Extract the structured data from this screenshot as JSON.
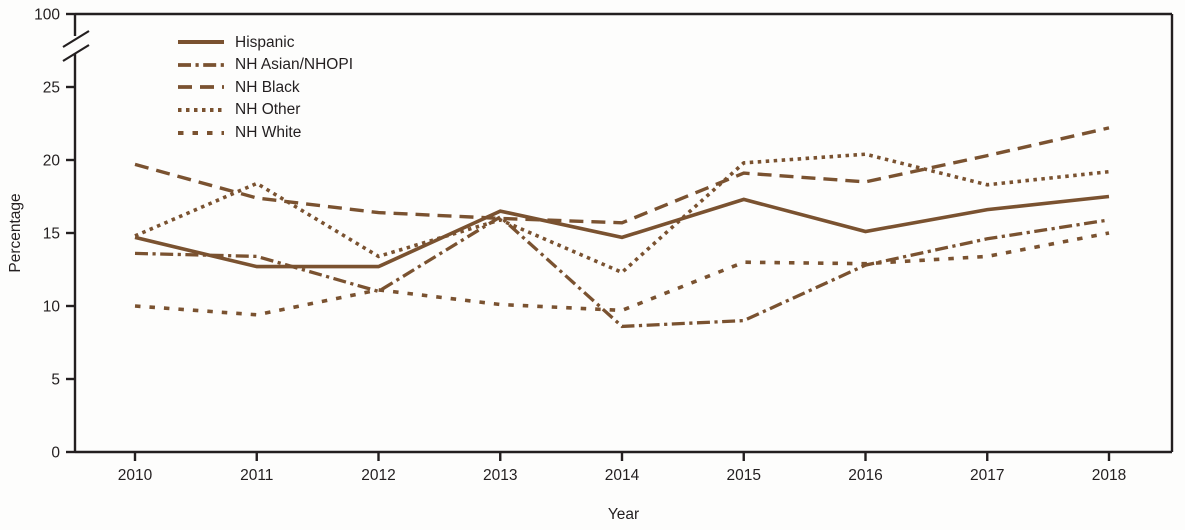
{
  "figure": {
    "background_color": "#fdfdfc",
    "line_color": "#7a5230",
    "axis_color": "#231f20",
    "ylabel": "Percentage",
    "xlabel": "Year"
  },
  "chart_data": {
    "type": "line",
    "title": "",
    "xlabel": "Year",
    "ylabel": "Percentage",
    "x": [
      2010,
      2011,
      2012,
      2013,
      2014,
      2015,
      2016,
      2017,
      2018
    ],
    "y_ticks": [
      0,
      5,
      10,
      15,
      20,
      25,
      100
    ],
    "axis_break_between": [
      25,
      100
    ],
    "grid": false,
    "legend_position": "top-left-inside",
    "series": [
      {
        "name": "Hispanic",
        "style": "solid",
        "values": [
          14.7,
          12.7,
          12.7,
          16.5,
          14.7,
          17.3,
          15.1,
          16.6,
          17.5
        ]
      },
      {
        "name": "NH Asian/NHOPI",
        "style": "dash-dot",
        "values": [
          13.6,
          13.4,
          11.0,
          16.1,
          8.6,
          9.0,
          12.8,
          14.6,
          15.9
        ]
      },
      {
        "name": "NH Black",
        "style": "long-dash",
        "values": [
          19.7,
          17.4,
          16.4,
          16.0,
          15.7,
          19.1,
          18.5,
          20.3,
          22.2
        ]
      },
      {
        "name": "NH Other",
        "style": "dotted",
        "values": [
          14.8,
          18.4,
          13.4,
          15.9,
          12.3,
          19.8,
          20.4,
          18.3,
          19.2
        ]
      },
      {
        "name": "NH White",
        "style": "short-dash",
        "values": [
          10.0,
          9.4,
          11.1,
          10.1,
          9.7,
          13.0,
          12.9,
          13.4,
          15.0
        ]
      }
    ]
  }
}
